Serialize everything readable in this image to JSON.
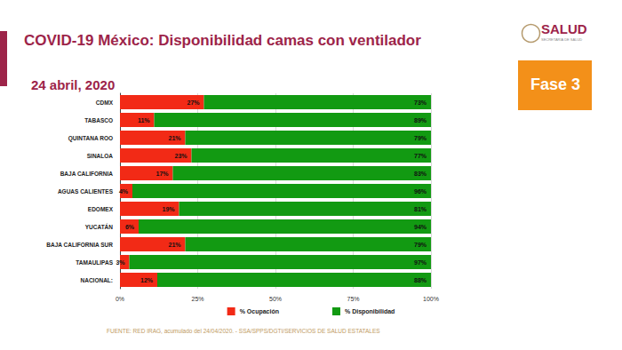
{
  "chart_data": {
    "type": "bar",
    "title": "COVID-19 México: Disponibilidad camas con ventilador",
    "subtitle": "24 abril, 2020",
    "annotations": [
      "Fase 3",
      "SALUD",
      "SECRETARÍA DE SALUD",
      "FUENTE: RED IRAG, acumulado del 24/04/2020. - SSA/SPPS/DGTI/SERVICIOS DE SALUD ESTATALES"
    ],
    "orientation": "horizontal",
    "stacked": true,
    "data_labels": true,
    "grid": true,
    "legend": "bottom",
    "categories": [
      "CDMX",
      "TABASCO",
      "QUINTANA ROO",
      "SINALOA",
      "BAJA CALIFORNIA",
      "AGUAS CALIENTES",
      "EDOMEX",
      "YUCATÁN",
      "BAJA CALIFORNIA SUR",
      "TAMAULIPAS",
      "NACIONAL:"
    ],
    "series": [
      {
        "name": "% Ocupación",
        "color": "#f22a16",
        "values": [
          27,
          11,
          21,
          23,
          17,
          4,
          19,
          6,
          21,
          3,
          12
        ],
        "value_labels": [
          "27%",
          "11%",
          "21%",
          "23%",
          "17%",
          "4%",
          "19%",
          "6%",
          "21%",
          "3%",
          "12%"
        ]
      },
      {
        "name": "% Disponibilidad",
        "color": "#129a12",
        "values": [
          73,
          89,
          79,
          77,
          83,
          96,
          81,
          94,
          79,
          97,
          88
        ],
        "value_labels": [
          "73%",
          "89%",
          "79%",
          "77%",
          "83%",
          "96%",
          "81%",
          "94%",
          "79%",
          "97%",
          "88%"
        ]
      }
    ],
    "xlim": [
      0,
      100
    ],
    "xticks": [
      {
        "value": 0,
        "label": "0%"
      },
      {
        "value": 25,
        "label": "25%"
      },
      {
        "value": 50,
        "label": "50%"
      },
      {
        "value": 75,
        "label": "75%"
      },
      {
        "value": 100,
        "label": "100%"
      }
    ]
  }
}
